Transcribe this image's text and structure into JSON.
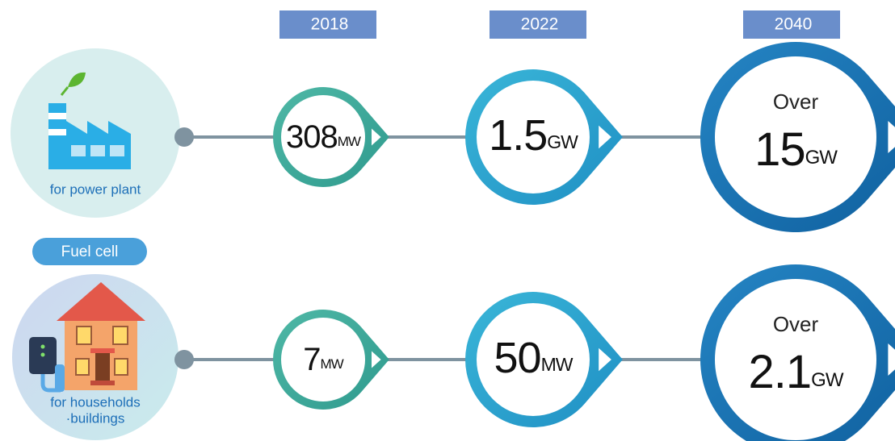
{
  "years": [
    "2018",
    "2022",
    "2040"
  ],
  "category": "Fuel cell",
  "rows": [
    {
      "label": [
        "for power plant"
      ],
      "milestones": [
        {
          "value": "308",
          "unit": "MW"
        },
        {
          "value": "1.5",
          "unit": "GW"
        },
        {
          "prefix": "Over",
          "value": "15",
          "unit": "GW"
        }
      ]
    },
    {
      "label": [
        "for households",
        "·buildings"
      ],
      "milestones": [
        {
          "value": "7",
          "unit": "MW"
        },
        {
          "value": "50",
          "unit": "MW"
        },
        {
          "prefix": "Over",
          "value": "2.1",
          "unit": "GW"
        }
      ]
    }
  ]
}
